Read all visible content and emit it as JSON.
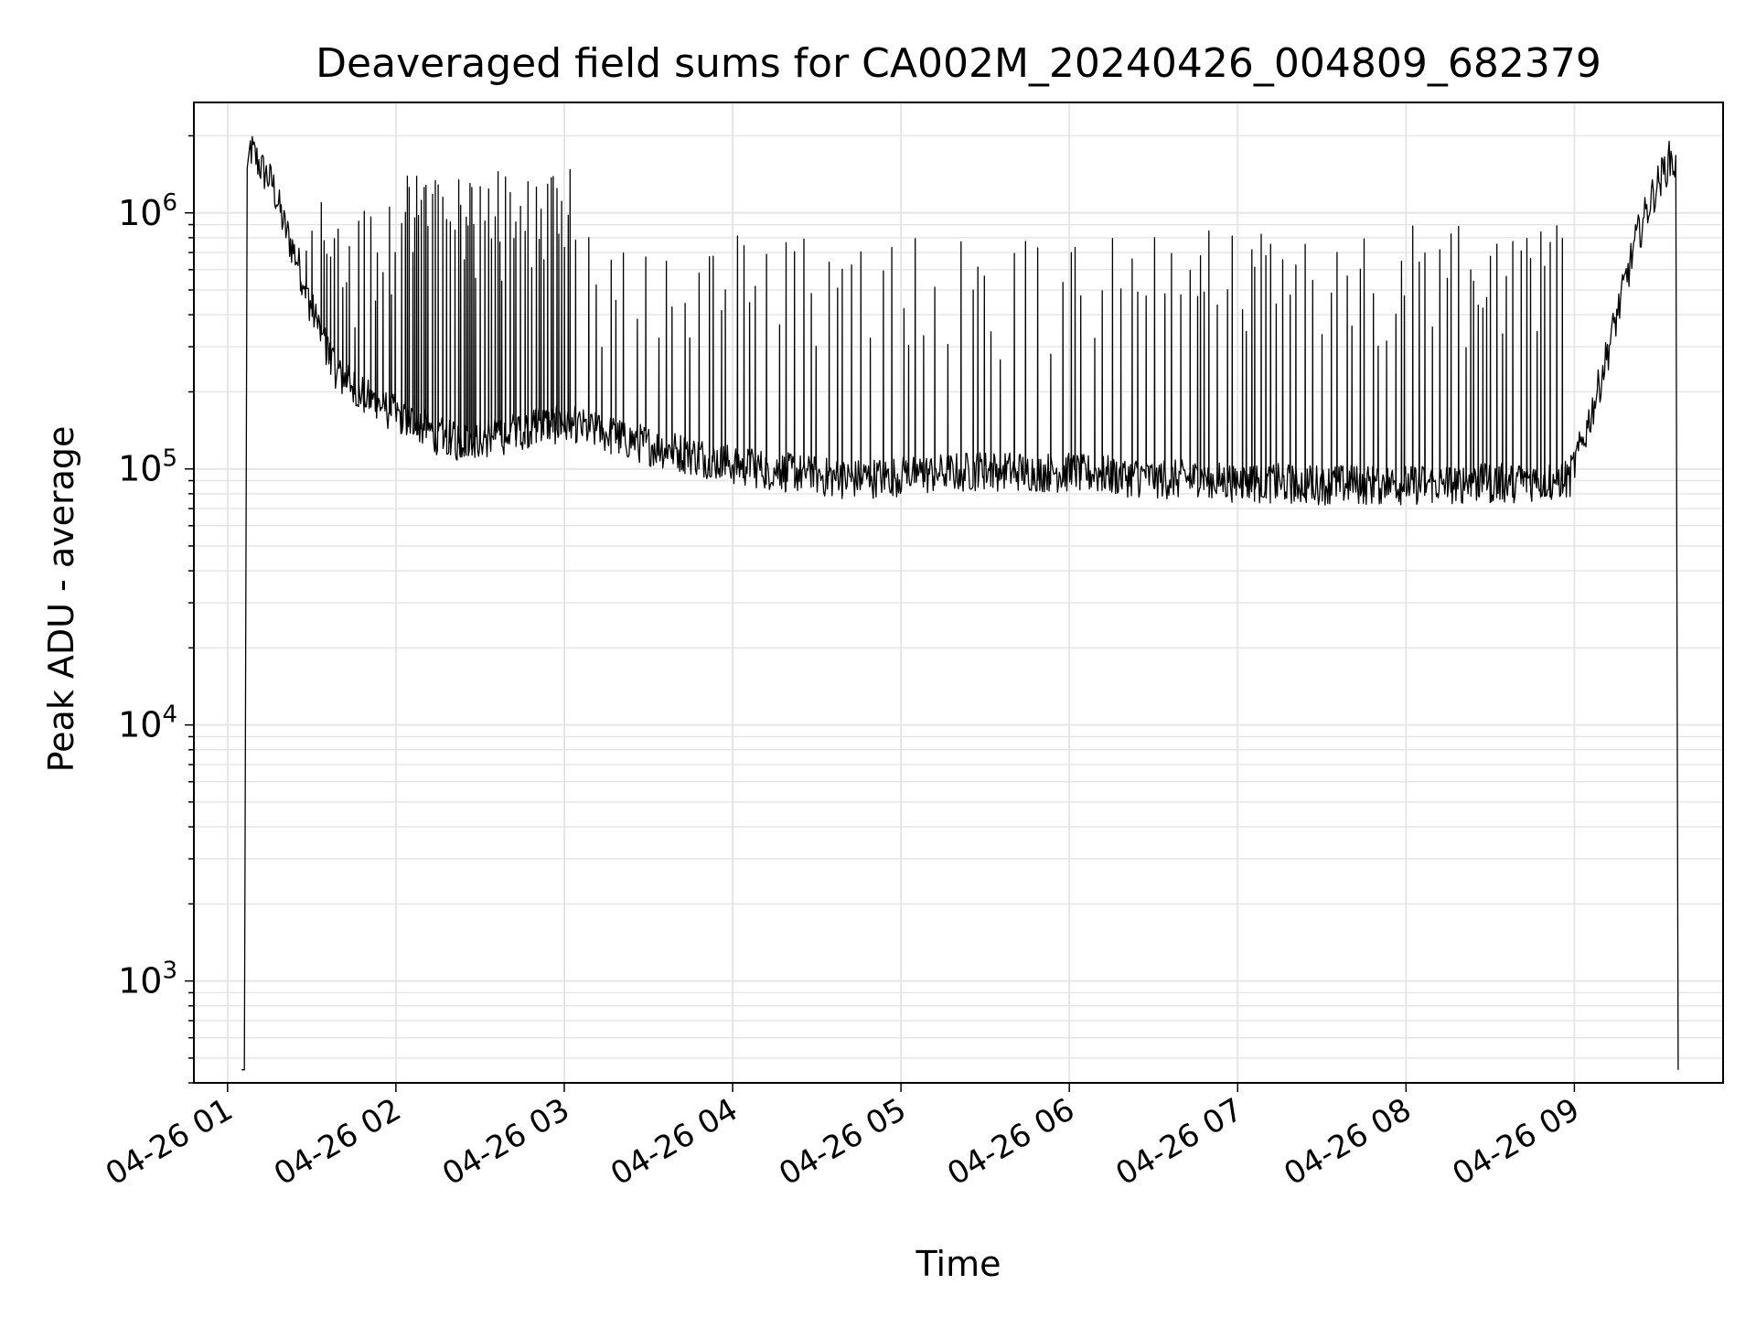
{
  "chart_data": {
    "type": "line",
    "title": "Deaveraged field sums for CA002M_20240426_004809_682379",
    "xlabel": "Time",
    "ylabel": "Peak ADU - average",
    "y_scale": "log",
    "ylim": [
      400,
      2700000
    ],
    "xlim": [
      "2024-04-26 00:48",
      "2024-04-26 09:53"
    ],
    "x_ticks": [
      {
        "x": "2024-04-26 01:00",
        "label": "04-26 01"
      },
      {
        "x": "2024-04-26 02:00",
        "label": "04-26 02"
      },
      {
        "x": "2024-04-26 03:00",
        "label": "04-26 03"
      },
      {
        "x": "2024-04-26 04:00",
        "label": "04-26 04"
      },
      {
        "x": "2024-04-26 05:00",
        "label": "04-26 05"
      },
      {
        "x": "2024-04-26 06:00",
        "label": "04-26 06"
      },
      {
        "x": "2024-04-26 07:00",
        "label": "04-26 07"
      },
      {
        "x": "2024-04-26 08:00",
        "label": "04-26 08"
      },
      {
        "x": "2024-04-26 09:00",
        "label": "04-26 09"
      }
    ],
    "y_ticks": [
      {
        "value": 1000,
        "base": "10",
        "exp": "3"
      },
      {
        "value": 10000,
        "base": "10",
        "exp": "4"
      },
      {
        "value": 100000,
        "base": "10",
        "exp": "5"
      },
      {
        "value": 1000000,
        "base": "10",
        "exp": "6"
      }
    ],
    "grid": true,
    "line_color": "#000000",
    "grid_color": "#e6e6e6",
    "series": [
      {
        "baseline": [
          [
            "2024-04-26 01:08",
            1800000
          ],
          [
            "2024-04-26 01:12",
            1500000
          ],
          [
            "2024-04-26 01:16",
            1300000
          ],
          [
            "2024-04-26 01:20",
            900000
          ],
          [
            "2024-04-26 01:26",
            600000
          ],
          [
            "2024-04-26 01:30",
            420000
          ],
          [
            "2024-04-26 01:35",
            300000
          ],
          [
            "2024-04-26 01:40",
            230000
          ],
          [
            "2024-04-26 01:50",
            190000
          ],
          [
            "2024-04-26 02:00",
            165000
          ],
          [
            "2024-04-26 02:10",
            145000
          ],
          [
            "2024-04-26 02:20",
            130000
          ],
          [
            "2024-04-26 02:35",
            135000
          ],
          [
            "2024-04-26 02:50",
            150000
          ],
          [
            "2024-04-26 03:00",
            152000
          ],
          [
            "2024-04-26 03:15",
            138000
          ],
          [
            "2024-04-26 03:30",
            125000
          ],
          [
            "2024-04-26 03:45",
            115000
          ],
          [
            "2024-04-26 04:00",
            105000
          ],
          [
            "2024-04-26 04:20",
            98000
          ],
          [
            "2024-04-26 04:40",
            92000
          ],
          [
            "2024-04-26 05:00",
            95000
          ],
          [
            "2024-04-26 05:30",
            100000
          ],
          [
            "2024-04-26 06:00",
            98000
          ],
          [
            "2024-04-26 06:30",
            93000
          ],
          [
            "2024-04-26 07:00",
            90000
          ],
          [
            "2024-04-26 07:30",
            88000
          ],
          [
            "2024-04-26 08:00",
            88000
          ],
          [
            "2024-04-26 08:30",
            89000
          ],
          [
            "2024-04-26 08:58",
            92000
          ],
          [
            "2024-04-26 09:03",
            130000
          ],
          [
            "2024-04-26 09:08",
            200000
          ],
          [
            "2024-04-26 09:15",
            400000
          ],
          [
            "2024-04-26 09:22",
            800000
          ],
          [
            "2024-04-26 09:28",
            1200000
          ],
          [
            "2024-04-26 09:34",
            1650000
          ],
          [
            "2024-04-26 09:36",
            1500000
          ]
        ],
        "spike_bands": [
          {
            "from": "2024-04-26 01:25",
            "to": "2024-04-26 02:03",
            "peak": 1000000,
            "every_min": 1.4
          },
          {
            "from": "2024-04-26 02:03",
            "to": "2024-04-26 03:02",
            "peak": 1350000,
            "every_min": 0.9
          },
          {
            "from": "2024-04-26 03:02",
            "to": "2024-04-26 06:20",
            "peak": 750000,
            "every_min": 3.0
          },
          {
            "from": "2024-04-26 06:20",
            "to": "2024-04-26 07:55",
            "peak": 780000,
            "every_min": 2.2
          },
          {
            "from": "2024-04-26 07:55",
            "to": "2024-04-26 08:58",
            "peak": 820000,
            "every_min": 1.8
          }
        ]
      }
    ]
  }
}
